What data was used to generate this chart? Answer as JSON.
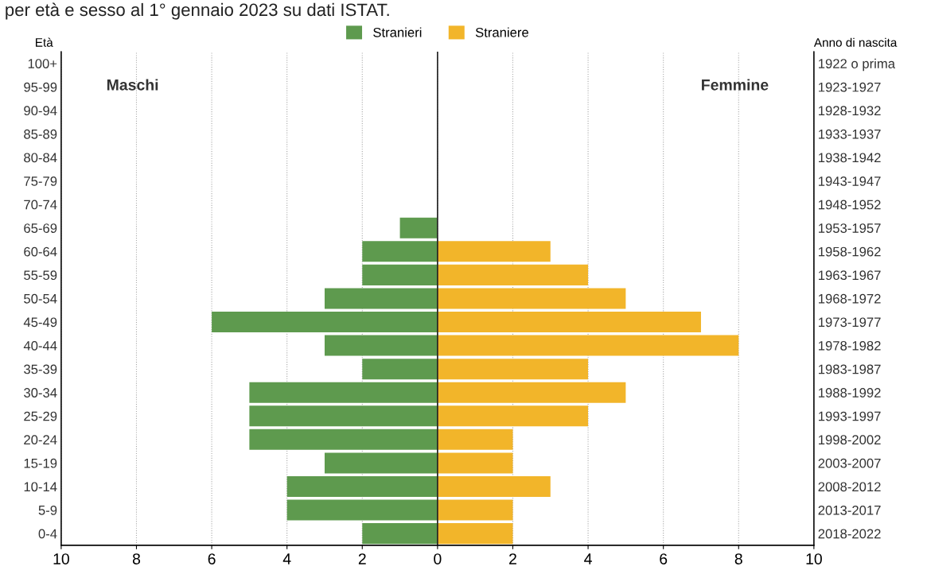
{
  "chart_data": {
    "type": "bar",
    "orientation": "horizontal",
    "title": "per età e sesso al 1° gennaio 2023 su dati ISTAT.",
    "categories": [
      "100+",
      "95-99",
      "90-94",
      "85-89",
      "80-84",
      "75-79",
      "70-74",
      "65-69",
      "60-64",
      "55-59",
      "50-54",
      "45-49",
      "40-44",
      "35-39",
      "30-34",
      "25-29",
      "20-24",
      "15-19",
      "10-14",
      "5-9",
      "0-4"
    ],
    "y2_categories": [
      "1922 o prima",
      "1923-1927",
      "1928-1932",
      "1933-1937",
      "1938-1942",
      "1943-1947",
      "1948-1952",
      "1953-1957",
      "1958-1962",
      "1963-1967",
      "1968-1972",
      "1973-1977",
      "1978-1982",
      "1983-1987",
      "1988-1992",
      "1993-1997",
      "1998-2002",
      "2003-2007",
      "2008-2012",
      "2013-2017",
      "2018-2022"
    ],
    "ylabel": "Età",
    "y2label": "Anno di nascita",
    "series": [
      {
        "name": "Stranieri",
        "color": "#5e9a4e",
        "values": [
          0,
          0,
          0,
          0,
          0,
          0,
          0,
          -1,
          -2,
          -2,
          -3,
          -6,
          -3,
          -2,
          -5,
          -5,
          -5,
          -3,
          -4,
          -4,
          -2
        ]
      },
      {
        "name": "Straniere",
        "color": "#f2b52a",
        "values": [
          0,
          0,
          0,
          0,
          0,
          0,
          0,
          0,
          3,
          4,
          5,
          7,
          8,
          4,
          5,
          4,
          2,
          2,
          3,
          2,
          2
        ]
      }
    ],
    "xlim": [
      -10,
      10
    ],
    "xticks": [
      {
        "value": -10,
        "label": "10"
      },
      {
        "value": -8,
        "label": "8"
      },
      {
        "value": -6,
        "label": "6"
      },
      {
        "value": -4,
        "label": "4"
      },
      {
        "value": -2,
        "label": "2"
      },
      0,
      2,
      4,
      6,
      8,
      10
    ],
    "grid": "x",
    "legend": "top",
    "ref_lines": [
      {
        "axis": "x",
        "value": 0,
        "color": "#222222"
      }
    ],
    "stacked": true,
    "annotations": [
      "Maschi",
      "Femmine"
    ]
  }
}
